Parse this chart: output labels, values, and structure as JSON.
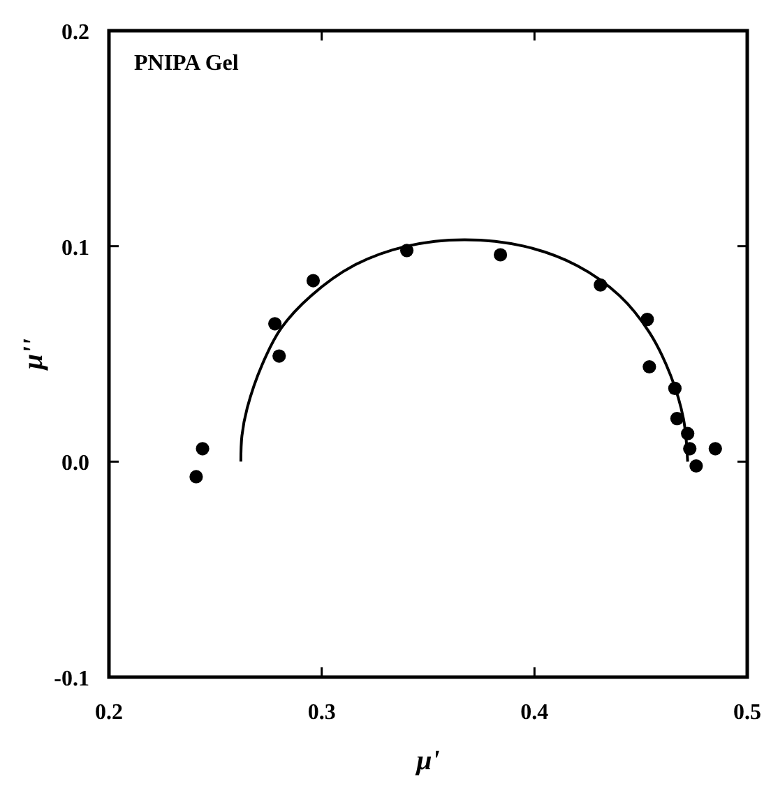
{
  "chart_data": {
    "type": "scatter",
    "xlabel": "μ'",
    "ylabel": "μ''",
    "annotations": [
      "PNIPA Gel"
    ],
    "xlim": [
      0.2,
      0.5
    ],
    "xticks": [
      0.2,
      0.3,
      0.4,
      0.5
    ],
    "ylim": [
      -0.1,
      0.2
    ],
    "yticks": [
      -0.1,
      {
        "value": 0,
        "label": "0.0"
      },
      0.1,
      0.2
    ],
    "grid": false,
    "series": [
      {
        "color": "#000000",
        "marker": "circle",
        "x": [
          0.241,
          0.244,
          0.278,
          0.28,
          0.296,
          0.34,
          0.384,
          0.431,
          0.453,
          0.454,
          0.466,
          0.467,
          0.472,
          0.473,
          0.476,
          0.485
        ],
        "values": [
          -0.007,
          0.006,
          0.064,
          0.049,
          0.084,
          0.098,
          0.096,
          0.082,
          0.066,
          0.044,
          0.034,
          0.02,
          0.013,
          0.006,
          -0.002,
          0.006
        ]
      },
      {
        "type": "line",
        "color": "#000000",
        "marker": "none",
        "line_style": "solid",
        "x": [
          0.262,
          0.2625,
          0.265,
          0.272,
          0.281,
          0.295,
          0.315,
          0.34,
          0.367,
          0.395,
          0.42,
          0.44,
          0.454,
          0.464,
          0.47,
          0.472
        ],
        "values": [
          0.0,
          0.012,
          0.025,
          0.045,
          0.062,
          0.077,
          0.091,
          0.1,
          0.103,
          0.1,
          0.091,
          0.077,
          0.06,
          0.04,
          0.02,
          0.0
        ]
      }
    ]
  }
}
